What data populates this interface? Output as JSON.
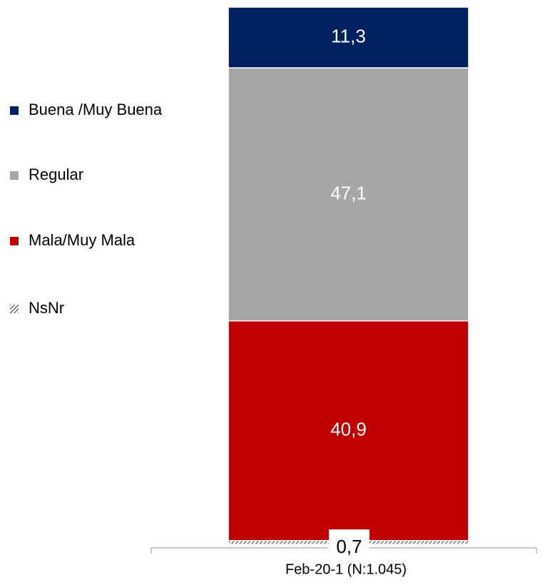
{
  "chart_data": {
    "type": "stacked-bar",
    "categories": [
      "Feb-20-1 (N:1.045)"
    ],
    "series": [
      {
        "name": "NsNr",
        "color": "#000000",
        "pattern": "hatch",
        "values": [
          0.7
        ],
        "value_labels": [
          "0,7"
        ]
      },
      {
        "name": "Mala/Muy Mala",
        "color": "#c00000",
        "values": [
          40.9
        ],
        "value_labels": [
          "40,9"
        ]
      },
      {
        "name": "Regular",
        "color": "#a6a6a6",
        "values": [
          47.1
        ],
        "value_labels": [
          "47,1"
        ]
      },
      {
        "name": "Buena /Muy Buena",
        "color": "#002060",
        "values": [
          11.3
        ],
        "value_labels": [
          "11,3"
        ]
      }
    ],
    "legend": "left"
  }
}
